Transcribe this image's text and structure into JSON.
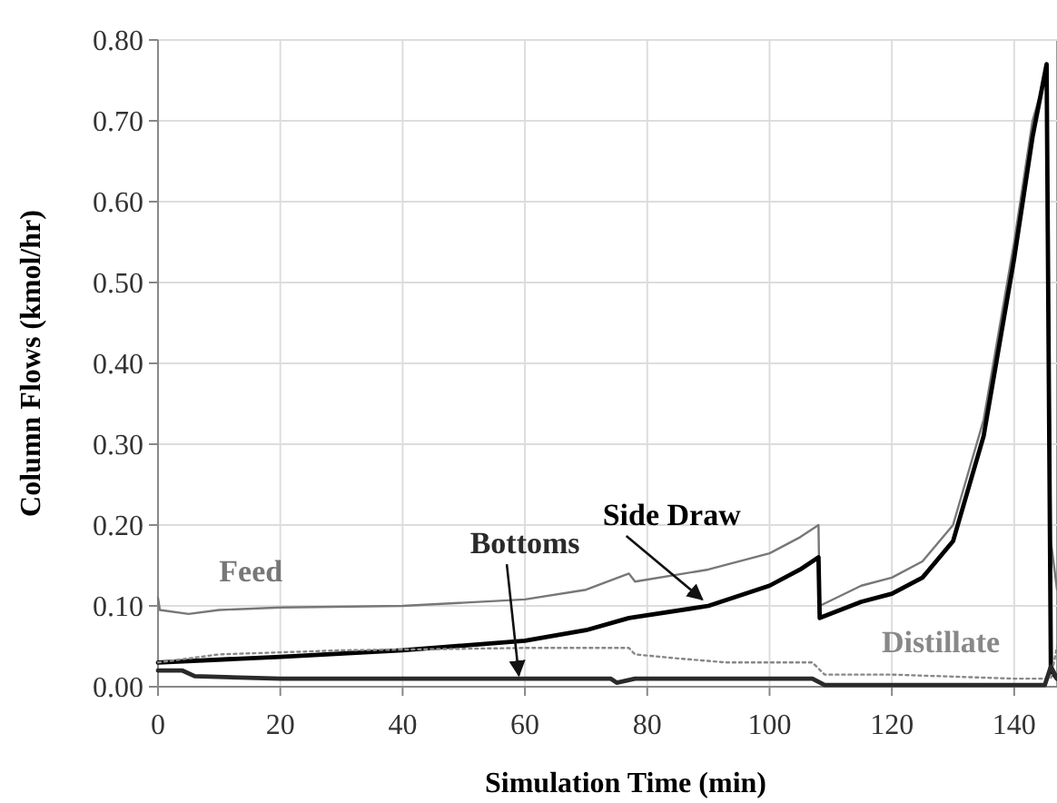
{
  "chart_data": {
    "type": "line",
    "xlabel": "Simulation Time (min)",
    "ylabel": "Column Flows (kmol/hr)",
    "xlim": [
      0,
      147
    ],
    "xticks": [
      0,
      20,
      40,
      60,
      80,
      100,
      120,
      140
    ],
    "ylim": [
      0,
      0.8
    ],
    "yticks": [
      {
        "value": 0,
        "label": "0.00"
      },
      {
        "value": 0.1,
        "label": "0.10"
      },
      {
        "value": 0.2,
        "label": "0.20"
      },
      {
        "value": 0.3,
        "label": "0.30"
      },
      {
        "value": 0.4,
        "label": "0.40"
      },
      {
        "value": 0.5,
        "label": "0.50"
      },
      {
        "value": 0.6,
        "label": "0.60"
      },
      {
        "value": 0.7,
        "label": "0.70"
      },
      {
        "value": 0.8,
        "label": "0.80"
      }
    ],
    "grid": true,
    "series": [
      {
        "name": "Feed",
        "color": "#777777",
        "line_style": "solid",
        "x": [
          0,
          0.3,
          5,
          10,
          20,
          40,
          60,
          70,
          77,
          78,
          90,
          100,
          105,
          108,
          108.2,
          115,
          120,
          125,
          130,
          135,
          140,
          143,
          145.3,
          146,
          147
        ],
        "values": [
          0.11,
          0.095,
          0.09,
          0.095,
          0.098,
          0.1,
          0.108,
          0.12,
          0.14,
          0.13,
          0.145,
          0.165,
          0.185,
          0.2,
          0.1,
          0.125,
          0.135,
          0.155,
          0.2,
          0.33,
          0.55,
          0.7,
          0.76,
          0.18,
          0.12
        ]
      },
      {
        "name": "Side Draw",
        "color": "#000000",
        "line_style": "solid",
        "x": [
          0,
          20,
          40,
          60,
          70,
          77,
          90,
          100,
          105,
          108,
          108.2,
          115,
          120,
          125,
          130,
          135,
          140,
          143,
          145.3,
          146,
          147
        ],
        "values": [
          0.03,
          0.037,
          0.045,
          0.057,
          0.07,
          0.085,
          0.1,
          0.125,
          0.145,
          0.16,
          0.085,
          0.105,
          0.115,
          0.135,
          0.18,
          0.31,
          0.53,
          0.68,
          0.77,
          0.02,
          0.01
        ]
      },
      {
        "name": "Distillate",
        "color": "#888888",
        "line_style": "dotted",
        "x": [
          0,
          10,
          30,
          60,
          77,
          78,
          85,
          93,
          107,
          109,
          120,
          140,
          146,
          147
        ],
        "values": [
          0.03,
          0.04,
          0.045,
          0.048,
          0.048,
          0.04,
          0.035,
          0.03,
          0.03,
          0.015,
          0.015,
          0.01,
          0.01,
          0.05
        ]
      },
      {
        "name": "Bottoms",
        "color": "#2a2a2a",
        "line_style": "solid",
        "x": [
          0,
          4,
          6,
          20,
          74,
          75,
          78,
          107,
          109,
          145,
          146,
          147
        ],
        "values": [
          0.02,
          0.02,
          0.013,
          0.01,
          0.01,
          0.005,
          0.01,
          0.01,
          0.002,
          0.002,
          0.025,
          0.01
        ]
      }
    ]
  }
}
